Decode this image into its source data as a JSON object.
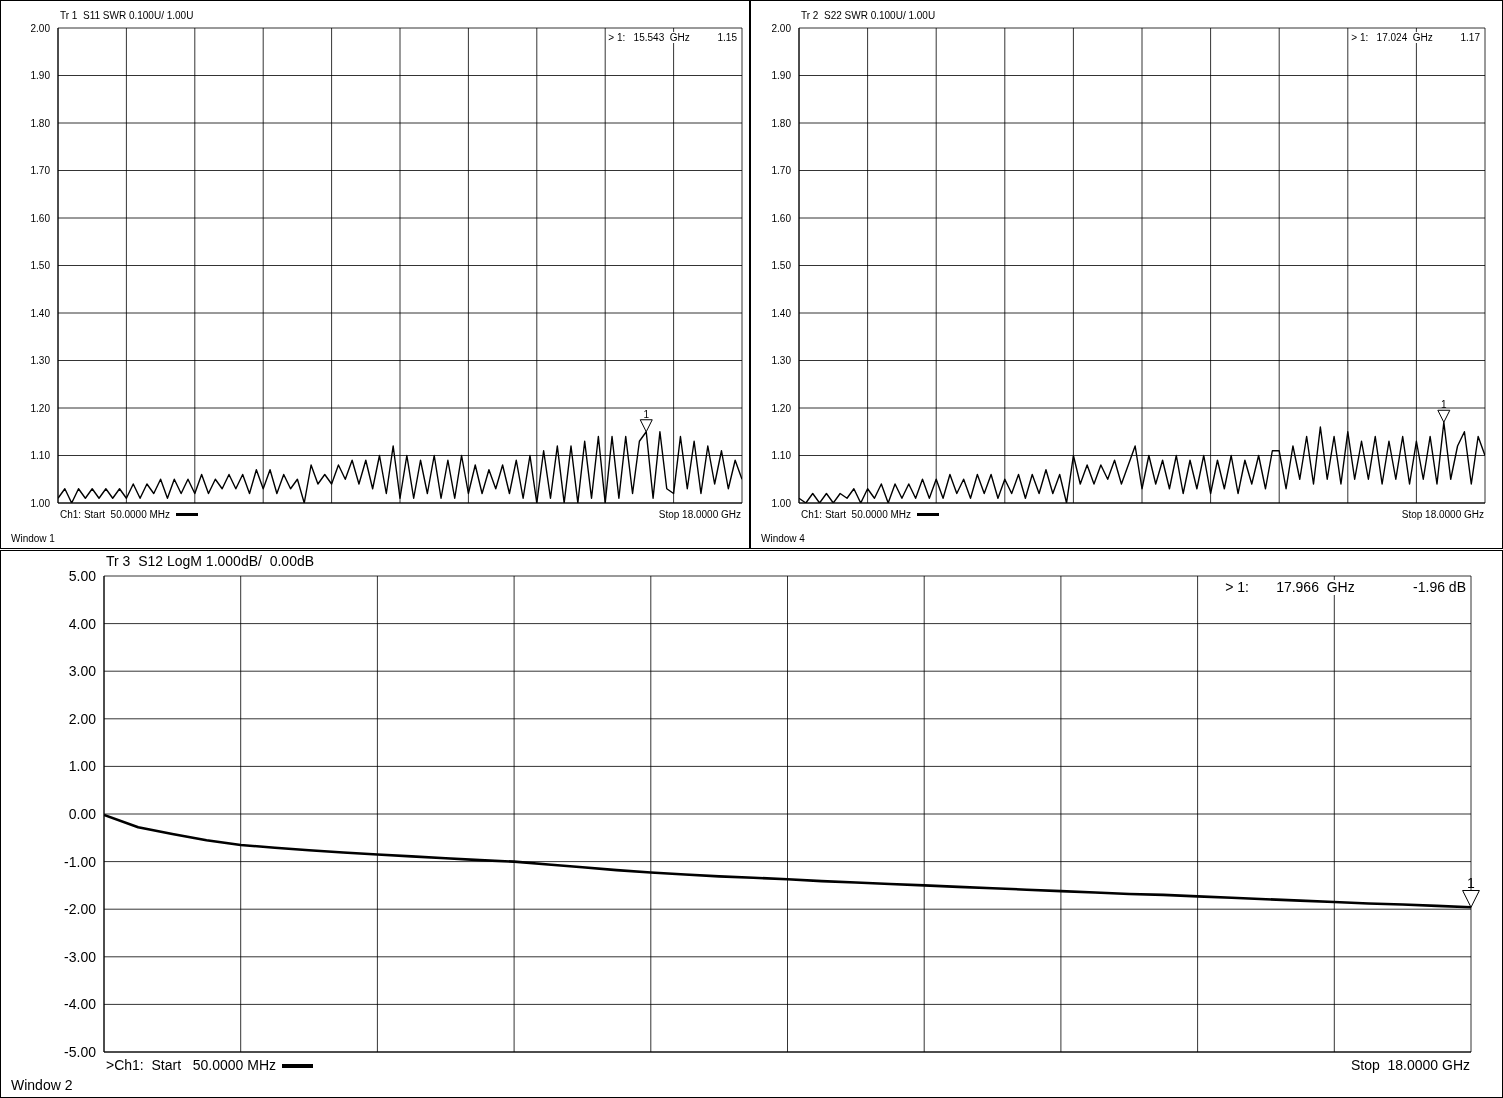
{
  "chart_data": [
    {
      "type": "line",
      "title": "Tr 1  S11 SWR 0.100U/ 1.00U",
      "marker": "none",
      "grid": true,
      "tick_labels": "y",
      "categories": [
        null,
        null,
        null,
        null,
        null,
        null,
        null,
        null,
        null,
        null,
        null,
        null,
        null,
        null,
        null,
        null,
        null,
        null,
        null,
        null,
        null,
        null,
        null,
        null,
        null,
        null,
        null,
        null,
        null,
        null,
        null,
        null,
        null,
        null,
        null,
        null,
        null,
        null,
        null,
        null,
        null,
        null,
        null,
        null,
        null,
        null,
        null,
        null,
        null,
        null,
        null,
        null,
        null,
        null,
        null,
        null,
        null,
        null,
        null,
        null,
        null,
        null,
        null,
        null,
        null,
        null,
        null,
        null,
        null,
        null,
        null,
        null,
        null,
        null,
        null,
        null,
        null,
        null,
        null,
        null,
        null,
        null,
        null,
        null,
        null,
        null,
        null,
        null,
        null,
        null,
        null,
        null,
        null,
        null,
        null,
        null,
        null,
        null,
        null,
        null,
        null
      ],
      "series": [
        {
          "color": "#000000",
          "values": [
            1.01,
            1.03,
            1.0,
            1.03,
            1.01,
            1.03,
            1.01,
            1.03,
            1.01,
            1.03,
            1.01,
            1.04,
            1.01,
            1.04,
            1.02,
            1.05,
            1.01,
            1.05,
            1.02,
            1.05,
            1.02,
            1.06,
            1.02,
            1.05,
            1.03,
            1.06,
            1.03,
            1.06,
            1.02,
            1.07,
            1.03,
            1.07,
            1.02,
            1.06,
            1.03,
            1.05,
            1.0,
            1.08,
            1.04,
            1.06,
            1.04,
            1.08,
            1.05,
            1.09,
            1.04,
            1.09,
            1.03,
            1.1,
            1.02,
            1.12,
            1.01,
            1.1,
            1.01,
            1.09,
            1.02,
            1.1,
            1.01,
            1.09,
            1.01,
            1.1,
            1.02,
            1.08,
            1.02,
            1.07,
            1.03,
            1.08,
            1.02,
            1.09,
            1.01,
            1.1,
            1.0,
            1.11,
            1.01,
            1.12,
            1.0,
            1.12,
            1.0,
            1.13,
            1.01,
            1.14,
            1.0,
            1.14,
            1.01,
            1.14,
            1.02,
            1.13,
            1.15,
            1.01,
            1.15,
            1.03,
            1.02,
            1.14,
            1.03,
            1.13,
            1.02,
            1.12,
            1.04,
            1.11,
            1.03,
            1.09,
            1.05
          ]
        }
      ],
      "ylim": [
        1.0,
        2.0
      ],
      "yticks": [
        {
          "value": 1.0,
          "label": "1.00"
        },
        {
          "value": 1.1,
          "label": "1.10"
        },
        {
          "value": 1.2,
          "label": "1.20"
        },
        {
          "value": 1.3,
          "label": "1.30"
        },
        {
          "value": 1.4,
          "label": "1.40"
        },
        {
          "value": 1.5,
          "label": "1.50"
        },
        {
          "value": 1.6,
          "label": "1.60"
        },
        {
          "value": 1.7,
          "label": "1.70"
        },
        {
          "value": 1.8,
          "label": "1.80"
        },
        {
          "value": 1.9,
          "label": "1.90"
        },
        {
          "value": 2.0,
          "label": "2.00"
        }
      ],
      "annotations": [
        "Ch1: Start  50.0000 MHz",
        "Stop 18.0000 GHz",
        "Window 1",
        "> 1:   15.543  GHz          1.15",
        {
          "text": "1",
          "y": 1.15
        }
      ]
    },
    {
      "type": "line",
      "title": "Tr 2  S22 SWR 0.100U/ 1.00U",
      "marker": "none",
      "grid": true,
      "tick_labels": "y",
      "categories": [
        null,
        null,
        null,
        null,
        null,
        null,
        null,
        null,
        null,
        null,
        null,
        null,
        null,
        null,
        null,
        null,
        null,
        null,
        null,
        null,
        null,
        null,
        null,
        null,
        null,
        null,
        null,
        null,
        null,
        null,
        null,
        null,
        null,
        null,
        null,
        null,
        null,
        null,
        null,
        null,
        null,
        null,
        null,
        null,
        null,
        null,
        null,
        null,
        null,
        null,
        null,
        null,
        null,
        null,
        null,
        null,
        null,
        null,
        null,
        null,
        null,
        null,
        null,
        null,
        null,
        null,
        null,
        null,
        null,
        null,
        null,
        null,
        null,
        null,
        null,
        null,
        null,
        null,
        null,
        null,
        null,
        null,
        null,
        null,
        null,
        null,
        null,
        null,
        null,
        null,
        null,
        null,
        null,
        null,
        null,
        null,
        null,
        null,
        null,
        null,
        null
      ],
      "series": [
        {
          "color": "#000000",
          "values": [
            1.01,
            1.0,
            1.02,
            1.0,
            1.02,
            1.0,
            1.02,
            1.01,
            1.03,
            1.0,
            1.03,
            1.01,
            1.04,
            1.0,
            1.04,
            1.01,
            1.04,
            1.01,
            1.05,
            1.01,
            1.05,
            1.01,
            1.06,
            1.02,
            1.05,
            1.01,
            1.06,
            1.02,
            1.06,
            1.01,
            1.05,
            1.02,
            1.06,
            1.01,
            1.06,
            1.02,
            1.07,
            1.02,
            1.06,
            1.0,
            1.1,
            1.04,
            1.08,
            1.04,
            1.08,
            1.05,
            1.09,
            1.04,
            1.08,
            1.12,
            1.03,
            1.1,
            1.04,
            1.09,
            1.03,
            1.1,
            1.02,
            1.09,
            1.03,
            1.1,
            1.02,
            1.09,
            1.03,
            1.1,
            1.02,
            1.09,
            1.04,
            1.1,
            1.03,
            1.11,
            1.11,
            1.03,
            1.12,
            1.05,
            1.14,
            1.04,
            1.16,
            1.05,
            1.14,
            1.04,
            1.15,
            1.05,
            1.13,
            1.05,
            1.14,
            1.04,
            1.13,
            1.05,
            1.14,
            1.04,
            1.13,
            1.05,
            1.14,
            1.04,
            1.17,
            1.05,
            1.12,
            1.15,
            1.04,
            1.14,
            1.1
          ]
        }
      ],
      "ylim": [
        1.0,
        2.0
      ],
      "yticks": [
        {
          "value": 1.0,
          "label": "1.00"
        },
        {
          "value": 1.1,
          "label": "1.10"
        },
        {
          "value": 1.2,
          "label": "1.20"
        },
        {
          "value": 1.3,
          "label": "1.30"
        },
        {
          "value": 1.4,
          "label": "1.40"
        },
        {
          "value": 1.5,
          "label": "1.50"
        },
        {
          "value": 1.6,
          "label": "1.60"
        },
        {
          "value": 1.7,
          "label": "1.70"
        },
        {
          "value": 1.8,
          "label": "1.80"
        },
        {
          "value": 1.9,
          "label": "1.90"
        },
        {
          "value": 2.0,
          "label": "2.00"
        }
      ],
      "annotations": [
        "Ch1: Start  50.0000 MHz",
        "Stop 18.0000 GHz",
        "Window 4",
        "> 1:   17.024  GHz          1.17",
        {
          "text": "1",
          "y": 1.17
        }
      ]
    },
    {
      "type": "line",
      "title": "Tr 3  S12 LogM 1.000dB/  0.00dB",
      "marker": "none",
      "grid": true,
      "tick_labels": "y",
      "categories": [
        null,
        null,
        null,
        null,
        null,
        null,
        null,
        null,
        null,
        null,
        null,
        null,
        null,
        null,
        null,
        null,
        null,
        null,
        null,
        null,
        null,
        null,
        null,
        null,
        null,
        null,
        null,
        null,
        null,
        null,
        null,
        null,
        null,
        null,
        null,
        null,
        null,
        null,
        null,
        null,
        null
      ],
      "series": [
        {
          "color": "#000000",
          "values": [
            -0.02,
            -0.28,
            -0.42,
            -0.55,
            -0.65,
            -0.71,
            -0.76,
            -0.81,
            -0.85,
            -0.89,
            -0.93,
            -0.97,
            -1.0,
            -1.06,
            -1.12,
            -1.18,
            -1.23,
            -1.27,
            -1.31,
            -1.34,
            -1.37,
            -1.41,
            -1.44,
            -1.47,
            -1.5,
            -1.53,
            -1.56,
            -1.59,
            -1.62,
            -1.65,
            -1.68,
            -1.7,
            -1.73,
            -1.76,
            -1.79,
            -1.82,
            -1.85,
            -1.88,
            -1.9,
            -1.93,
            -1.96
          ]
        }
      ],
      "ylim": [
        -5.0,
        5.0
      ],
      "yticks": [
        {
          "value": -5,
          "label": "-5.00"
        },
        {
          "value": -4,
          "label": "-4.00"
        },
        {
          "value": -3,
          "label": "-3.00"
        },
        {
          "value": -2,
          "label": "-2.00"
        },
        {
          "value": -1,
          "label": "-1.00"
        },
        {
          "value": 0,
          "label": "0.00"
        },
        {
          "value": 1,
          "label": "1.00"
        },
        {
          "value": 2,
          "label": "2.00"
        },
        {
          "value": 3,
          "label": "3.00"
        },
        {
          "value": 4,
          "label": "4.00"
        },
        {
          "value": 5,
          "label": "5.00"
        }
      ],
      "annotations": [
        ">Ch1:  Start   50.0000 MHz",
        "Stop  18.0000 GHz",
        "Window 2",
        "> 1:       17.966  GHz               -1.96 dB",
        {
          "text": "1",
          "y": -1.96
        }
      ]
    }
  ]
}
